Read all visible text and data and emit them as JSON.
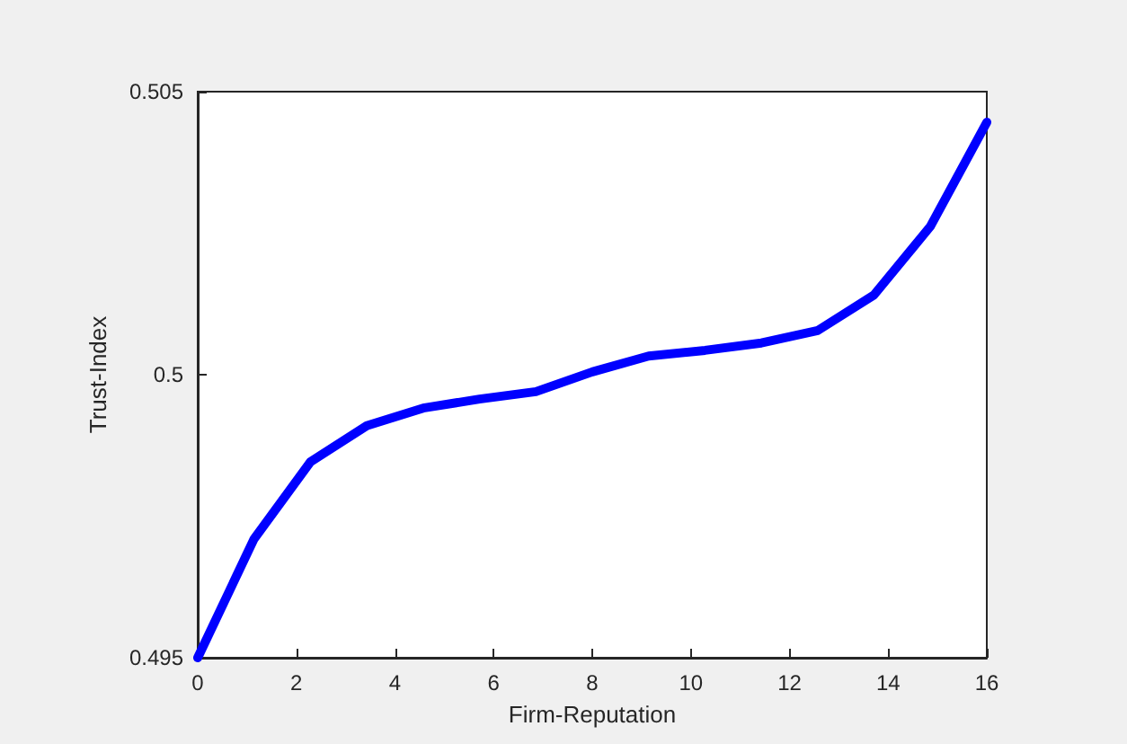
{
  "chart_data": {
    "type": "line",
    "xlabel": "Firm-Reputation",
    "ylabel": "Trust-Index",
    "x": [
      0,
      1.143,
      2.286,
      3.429,
      4.571,
      5.714,
      6.857,
      8,
      9.143,
      10.286,
      11.429,
      12.571,
      13.714,
      14.857,
      16
    ],
    "series": [
      {
        "color": "#0000ff",
        "values": [
          0.495,
          0.4971,
          0.49846,
          0.4991,
          0.49941,
          0.49957,
          0.4997,
          0.50005,
          0.50033,
          0.50043,
          0.50056,
          0.50078,
          0.50141,
          0.50262,
          0.50446
        ]
      }
    ],
    "xlim": [
      0,
      16
    ],
    "xticks": [
      0,
      2,
      4,
      6,
      8,
      10,
      12,
      14,
      16
    ],
    "ylim": [
      0.495,
      0.505
    ],
    "yticks": [
      0.495,
      0.5,
      0.505
    ],
    "grid": false,
    "marker": "none",
    "line_style": "solid"
  }
}
